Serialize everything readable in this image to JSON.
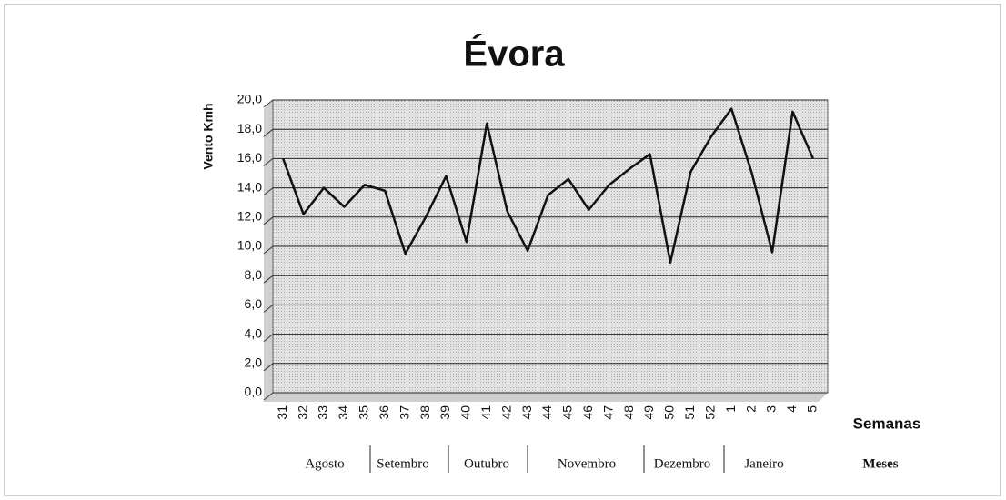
{
  "chart_data": {
    "type": "line",
    "title": "Évora",
    "y_label": "Vento Kmh",
    "x_label": "Semanas",
    "months_label": "Meses",
    "months": [
      "Agosto",
      "Setembro",
      "Outubro",
      "Novembro",
      "Dezembro",
      "Janeiro"
    ],
    "categories": [
      "31",
      "32",
      "33",
      "34",
      "35",
      "36",
      "37",
      "38",
      "39",
      "40",
      "41",
      "42",
      "43",
      "44",
      "45",
      "46",
      "47",
      "48",
      "49",
      "50",
      "51",
      "52",
      "1",
      "2",
      "3",
      "4",
      "5"
    ],
    "values": [
      16.0,
      12.2,
      14.0,
      12.7,
      14.2,
      13.8,
      9.5,
      12.0,
      14.8,
      10.3,
      18.4,
      12.4,
      9.7,
      13.5,
      14.6,
      12.5,
      14.2,
      15.3,
      16.3,
      8.9,
      15.1,
      17.5,
      19.4,
      15.0,
      9.6,
      19.2,
      16.0
    ],
    "color": "#111111",
    "ylim": [
      0,
      20
    ],
    "yticks": [
      {
        "value": 0,
        "label": "0,0"
      },
      {
        "value": 2,
        "label": "2,0"
      },
      {
        "value": 4,
        "label": "4,0"
      },
      {
        "value": 6,
        "label": "6,0"
      },
      {
        "value": 8,
        "label": "8,0"
      },
      {
        "value": 10,
        "label": "10,0"
      },
      {
        "value": 12,
        "label": "12,0"
      },
      {
        "value": 14,
        "label": "14,0"
      },
      {
        "value": 16,
        "label": "16,0"
      },
      {
        "value": 18,
        "label": "18,0"
      },
      {
        "value": 20,
        "label": "20,0"
      }
    ],
    "grid": true
  }
}
